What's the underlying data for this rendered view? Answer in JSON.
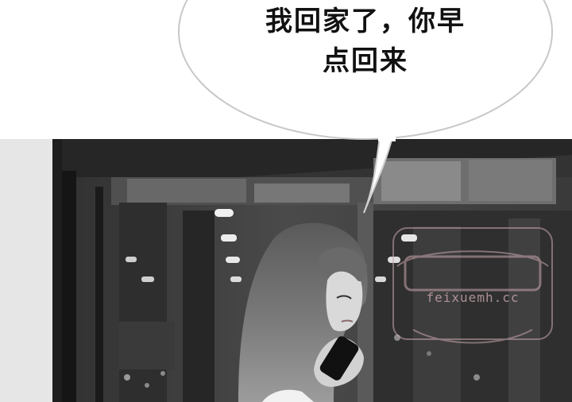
{
  "panel": {
    "speech_line1": "我回家了，你早",
    "speech_line2": "点回来"
  },
  "watermark": {
    "subtitle": "feixuemh.cc"
  },
  "colors": {
    "bubble_fill": "#ffffff",
    "bubble_stroke": "#c8c8c8",
    "text": "#111111",
    "watermark": "#c9a7ae"
  }
}
